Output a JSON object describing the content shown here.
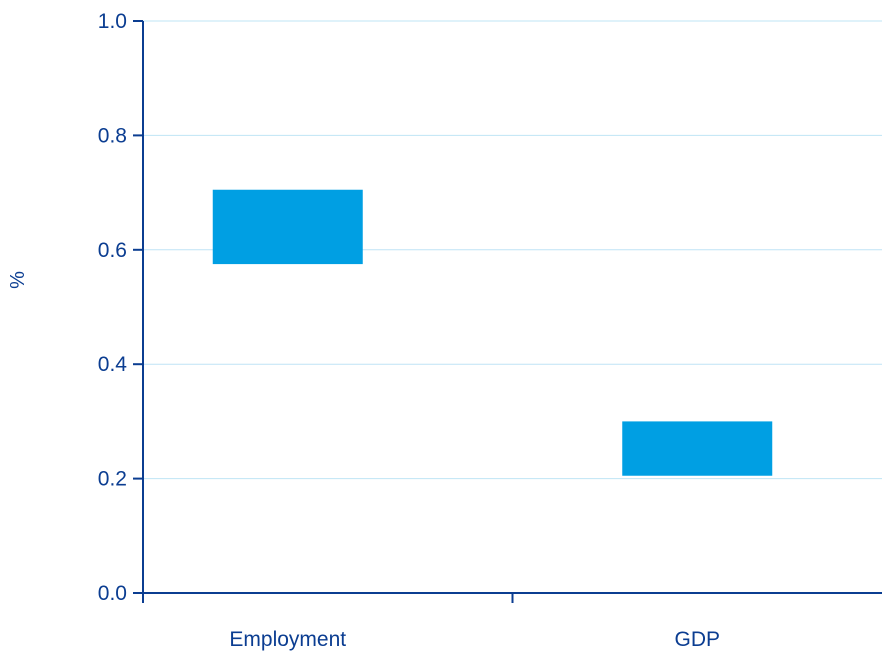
{
  "chart_data": {
    "type": "bar",
    "subtype": "floating-range",
    "categories": [
      "Employment",
      "GDP"
    ],
    "series": [
      {
        "ranges": [
          [
            0.575,
            0.705
          ],
          [
            0.205,
            0.3
          ]
        ]
      }
    ],
    "xlabel": "",
    "ylabel": "%",
    "ylim": [
      0,
      1.0
    ],
    "yticks": [
      "0.0",
      "0.2",
      "0.4",
      "0.6",
      "0.8",
      "1.0"
    ],
    "grid": true,
    "legend": "none",
    "colors": {
      "bar": "#009fe3",
      "axis": "#0b3d91",
      "grid": "#bfe4f5",
      "text": "#0b3d91"
    }
  }
}
